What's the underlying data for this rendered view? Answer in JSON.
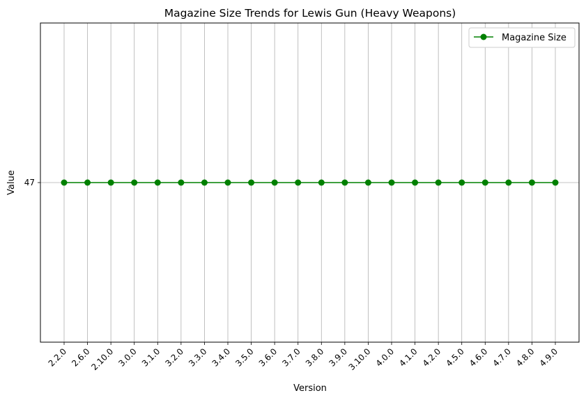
{
  "chart_data": {
    "type": "line",
    "title": "Magazine Size Trends for Lewis Gun (Heavy Weapons)",
    "xlabel": "Version",
    "ylabel": "Value",
    "categories": [
      "2.2.0",
      "2.6.0",
      "2.10.0",
      "3.0.0",
      "3.1.0",
      "3.2.0",
      "3.3.0",
      "3.4.0",
      "3.5.0",
      "3.6.0",
      "3.7.0",
      "3.8.0",
      "3.9.0",
      "3.10.0",
      "4.0.0",
      "4.1.0",
      "4.2.0",
      "4.5.0",
      "4.6.0",
      "4.7.0",
      "4.8.0",
      "4.9.0"
    ],
    "series": [
      {
        "name": "Magazine Size",
        "color": "#008000",
        "marker": "circle",
        "values": [
          47,
          47,
          47,
          47,
          47,
          47,
          47,
          47,
          47,
          47,
          47,
          47,
          47,
          47,
          47,
          47,
          47,
          47,
          47,
          47,
          47,
          47
        ]
      }
    ],
    "yticks": [
      "47"
    ],
    "ylim": [
      46.945,
      47.055
    ],
    "grid": true,
    "legend_position": "top-right"
  }
}
